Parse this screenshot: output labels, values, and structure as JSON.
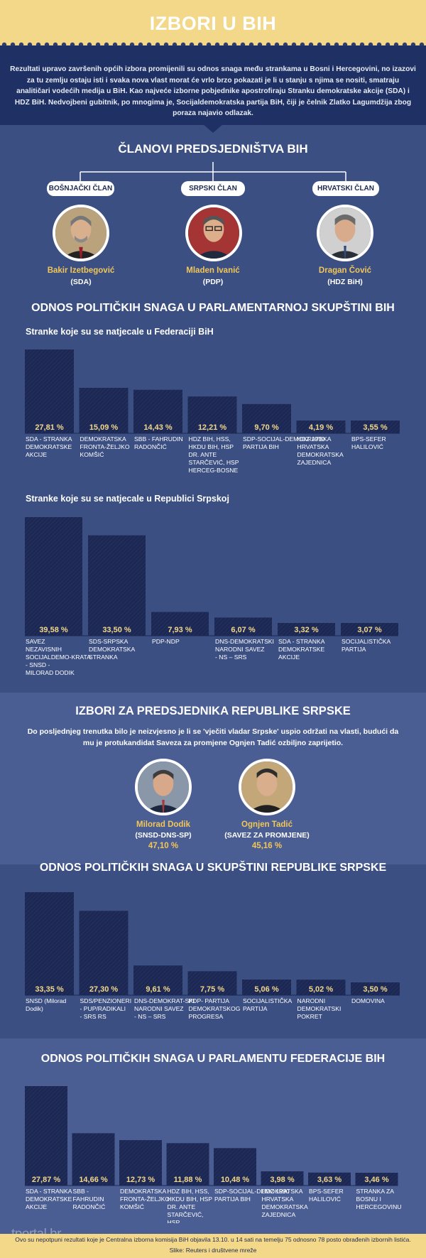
{
  "header": {
    "title": "IZBORI U BIH"
  },
  "intro": {
    "text": "Rezultati upravo završenih općih izbora promijenili su odnos snaga među strankama u Bosni i Hercegovini, no izazovi za tu zemlju ostaju isti i svaka nova vlast morat će vrlo brzo pokazati je li u stanju s njima se nositi, smatraju analitičari vodećih medija u BiH. Kao najveće izborne pobjednike apostrofiraju Stranku demokratske akcije (SDA) i HDZ BiH. Nedvojbeni gubitnik, po mnogima je, Socijaldemokratska partija BiH, čiji je čelnik Zlatko Lagumdžija zbog poraza najavio odlazak."
  },
  "presidency": {
    "title": "ČLANOVI PREDSJEDNIŠTVA BIH",
    "members": [
      {
        "role": "BOŠNJAČKI ČLAN",
        "name": "Bakir Izetbegović",
        "party": "(SDA)"
      },
      {
        "role": "SRPSKI ČLAN",
        "name": "Mladen Ivanić",
        "party": "(PDP)"
      },
      {
        "role": "HRVATSKI ČLAN",
        "name": "Dragan Čović",
        "party": "(HDZ BiH)"
      }
    ]
  },
  "parliament_title": "ODNOS POLITIČKIH SNAGA U PARLAMENTARNOJ SKUPŠTINI BIH",
  "rs_president": {
    "title": "IZBORI ZA PREDSJEDNIKA REPUBLIKE SRPSKE",
    "text": "Do posljednjeg trenutka bilo je neizvjesno je li se 'vječiti vladar Srpske' uspio održati na vlasti, budući da mu je protukandidat Saveza za promjene Ognjen Tadić ozbiljno zaprijetio.",
    "candidates": [
      {
        "name": "Milorad Dodik",
        "party": "(SNSD-DNS-SP)",
        "pct": "47,10 %"
      },
      {
        "name": "Ognjen Tadić",
        "party": "(SAVEZ ZA PROMJENE)",
        "pct": "45,16 %"
      }
    ]
  },
  "chart_data": [
    {
      "type": "bar",
      "title": "Stranke koje su se natjecale u Federaciji BiH",
      "categories": [
        "SDA - STRANKA DEMOKRATSKE AKCIJE",
        "DEMOKRATSKA FRONTA-ŽELJKO KOMŠIĆ",
        "SBB - FAHRUDIN RADONČIĆ",
        "HDZ BIH, HSS, HKDU BIH, HSP DR. ANTE STARČEVIĆ, HSP HERCEG-BOSNE",
        "SDP-SOCIJAL-DEMOKRATSKA PARTIJA BIH",
        "HDZ 1990 HRVATSKA DEMOKRATSKA ZAJEDNICA",
        "BPS-SEFER HALILOVIĆ"
      ],
      "values": [
        27.81,
        15.09,
        14.43,
        12.21,
        9.7,
        4.19,
        3.55
      ],
      "labels": [
        "27,81 %",
        "15,09 %",
        "14,43 %",
        "12,21 %",
        "9,70 %",
        "4,19 %",
        "3,55 %"
      ]
    },
    {
      "type": "bar",
      "title": "Stranke koje su se natjecale u Republici Srpskoj",
      "categories": [
        "SAVEZ NEZAVISNIH SOCIJALDEMO-KRATA - SNSD - MILORAD DODIK",
        "SDS-SRPSKA DEMOKRATSKA STRANKA",
        "PDP-NDP",
        "DNS-DEMOKRATSKI NARODNI SAVEZ - NS – SRS",
        "SDA - STRANKA DEMOKRATSKE AKCIJE",
        "SOCIJALISTIČKA PARTIJA"
      ],
      "values": [
        39.58,
        33.5,
        7.93,
        6.07,
        3.32,
        3.07
      ],
      "labels": [
        "39,58 %",
        "33,50 %",
        "7,93 %",
        "6,07 %",
        "3,32 %",
        "3,07 %"
      ]
    },
    {
      "type": "bar",
      "title": "ODNOS POLITIČKIH SNAGA U SKUPŠTINI REPUBLIKE SRPSKE",
      "categories": [
        "SNSD (Milorad Dodik)",
        "SDS/PENZIONERI - PUP/RADIKALI - SRS RS",
        "DNS-DEMOKRAT-SKI NARODNI SAVEZ - NS – SRS",
        "PDP- PARTIJA DEMOKRATSKOG PROGRESA",
        "SOCIJALISTIČKA PARTIJA",
        "NARODNI DEMOKRATSKI POKRET",
        "DOMOVINA"
      ],
      "values": [
        33.35,
        27.3,
        9.61,
        7.75,
        5.06,
        5.02,
        3.5
      ],
      "labels": [
        "33,35 %",
        "27,30 %",
        "9,61 %",
        "7,75 %",
        "5,06 %",
        "5,02 %",
        "3,50 %"
      ]
    },
    {
      "type": "bar",
      "title": "ODNOS POLITIČKIH SNAGA U PARLAMENTU FEDERACIJE BIH",
      "categories": [
        "SDA - STRANKA DEMOKRATSKE AKCIJE",
        "SBB - FAHRUDIN RADONČIĆ",
        "DEMOKRATSKA FRONTA-ŽELJKO KOMŠIĆ",
        "HDZ BIH, HSS, HKDU BIH, HSP DR. ANTE STARČEVIĆ, HSP HERCEG-BOSNE",
        "SDP-SOCIJAL-DEMOKRATSKA PARTIJA BIH",
        "HDZ 1990 HRVATSKA DEMOKRATSKA ZAJEDNICA",
        "BPS-SEFER HALILOVIĆ",
        "STRANKA ZA BOSNU I HERCEGOVINU"
      ],
      "values": [
        27.87,
        14.66,
        12.73,
        11.88,
        10.48,
        3.98,
        3.63,
        3.46
      ],
      "labels": [
        "27,87 %",
        "14,66 %",
        "12,73 %",
        "11,88 %",
        "10,48 %",
        "3,98 %",
        "3,63 %",
        "3,46 %"
      ]
    }
  ],
  "footer": {
    "logo": "tportal.hr",
    "note": "Ovo su nepotpuni rezultati koje je Centralna izborna komisija BiH objavila 13.10. u 14 sati na temelju 75 odnosno 78 posto obrađenih izbornih listića.",
    "source": "Slike: Reuters i društvene mreže"
  },
  "colors": {
    "background": "#3c4f82",
    "header": "#f3d88a",
    "intro_band": "#1e3064",
    "bar": "#1c2852",
    "value_label": "#f3d88a",
    "candidate_name": "#f0c75a"
  }
}
